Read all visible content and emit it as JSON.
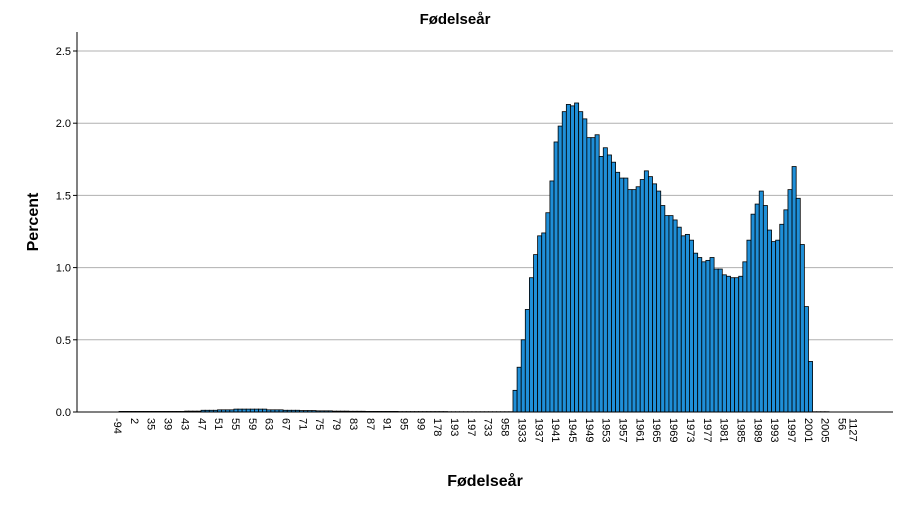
{
  "chart_data": {
    "type": "bar",
    "title": "Fødelseår",
    "xlabel": "Fødelseår",
    "ylabel": "Percent",
    "ylim": [
      0,
      2.5
    ],
    "yticks": [
      "0.0",
      "0.5",
      "1.0",
      "1.5",
      "2.0",
      "2.5"
    ],
    "grid": true,
    "bar_color": "#1f8fd8",
    "x_tick_labels": [
      "-94",
      "2",
      "35",
      "39",
      "43",
      "47",
      "51",
      "55",
      "59",
      "63",
      "67",
      "71",
      "75",
      "79",
      "83",
      "87",
      "91",
      "95",
      "99",
      "178",
      "193",
      "197",
      "733",
      "958",
      "1933",
      "1937",
      "1941",
      "1945",
      "1949",
      "1953",
      "1957",
      "1961",
      "1965",
      "1969",
      "1973",
      "1977",
      "1981",
      "1985",
      "1989",
      "1993",
      "1997",
      "2001",
      "2005",
      "56",
      "1127"
    ],
    "values": [
      0.004,
      0.004,
      0.004,
      0.004,
      0.004,
      0.004,
      0.004,
      0.004,
      0.004,
      0.004,
      0.004,
      0.004,
      0.004,
      0.004,
      0.004,
      0.004,
      0.006,
      0.006,
      0.006,
      0.006,
      0.012,
      0.012,
      0.012,
      0.012,
      0.015,
      0.015,
      0.015,
      0.015,
      0.02,
      0.02,
      0.02,
      0.02,
      0.02,
      0.02,
      0.02,
      0.02,
      0.015,
      0.015,
      0.015,
      0.015,
      0.012,
      0.012,
      0.012,
      0.012,
      0.01,
      0.01,
      0.01,
      0.01,
      0.008,
      0.008,
      0.008,
      0.008,
      0.006,
      0.006,
      0.006,
      0.006,
      0.005,
      0.005,
      0.005,
      0.005,
      0.004,
      0.004,
      0.004,
      0.004,
      0.004,
      0.004,
      0.004,
      0.004,
      0.003,
      0.003,
      0.003,
      0.003,
      0.003,
      0.003,
      0.003,
      0.003,
      0.003,
      0.003,
      0.003,
      0.003,
      0.002,
      0.002,
      0.002,
      0.002,
      0.002,
      0.002,
      0.002,
      0.002,
      0.002,
      0.002,
      0.002,
      0.002,
      0.002,
      0.002,
      0.002,
      0.002,
      0.15,
      0.31,
      0.5,
      0.71,
      0.93,
      1.09,
      1.22,
      1.24,
      1.38,
      1.6,
      1.87,
      1.98,
      2.08,
      2.13,
      2.12,
      2.14,
      2.08,
      2.03,
      1.9,
      1.9,
      1.92,
      1.77,
      1.83,
      1.78,
      1.73,
      1.66,
      1.62,
      1.62,
      1.54,
      1.54,
      1.56,
      1.61,
      1.67,
      1.63,
      1.58,
      1.53,
      1.43,
      1.36,
      1.36,
      1.33,
      1.28,
      1.22,
      1.23,
      1.19,
      1.1,
      1.07,
      1.04,
      1.05,
      1.07,
      0.99,
      0.99,
      0.95,
      0.94,
      0.93,
      0.93,
      0.94,
      1.04,
      1.19,
      1.37,
      1.44,
      1.53,
      1.43,
      1.26,
      1.18,
      1.19,
      1.3,
      1.4,
      1.54,
      1.7,
      1.48,
      1.16,
      0.73,
      0.35,
      0.002,
      0.002,
      0.002,
      0.002
    ]
  }
}
